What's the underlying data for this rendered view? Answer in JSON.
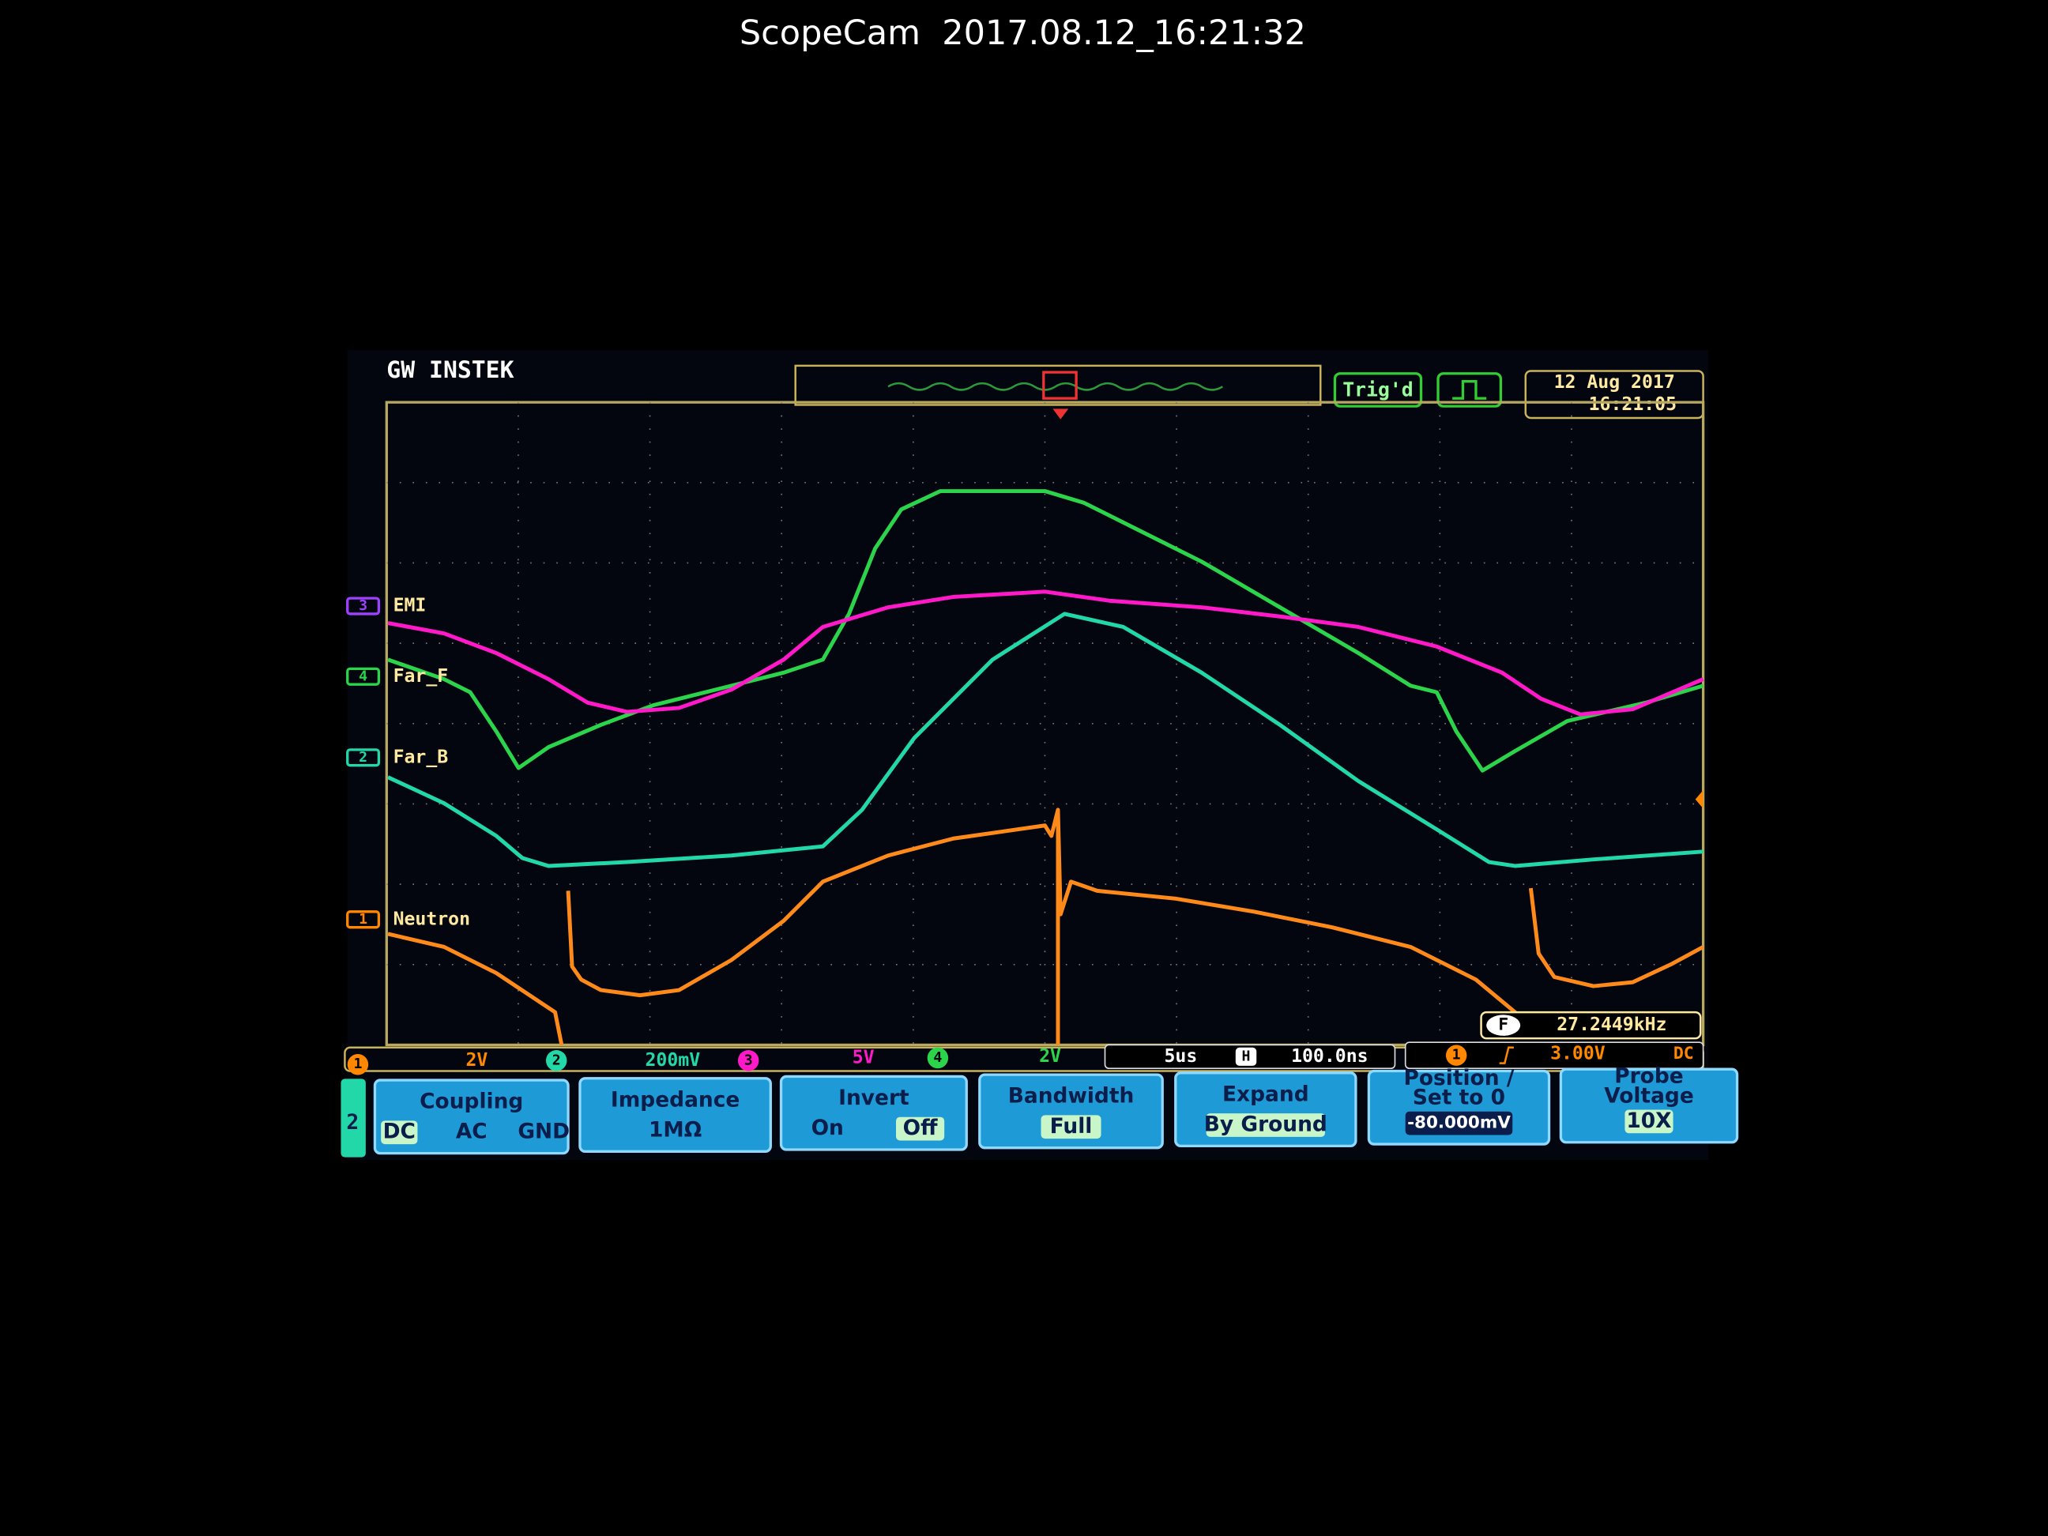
{
  "caption": "ScopeCam  2017.08.12_16:21:32",
  "header": {
    "brand": "GW INSTEK",
    "status": "Trig'd",
    "date": "12 Aug 2017",
    "time": "16:21:05"
  },
  "channels": [
    {
      "number": "3",
      "label": "EMI"
    },
    {
      "number": "4",
      "label": "Far_F"
    },
    {
      "number": "2",
      "label": "Far_B"
    },
    {
      "number": "1",
      "label": "Neutron"
    }
  ],
  "frequency": {
    "marker": "F",
    "value": "27.2449kHz"
  },
  "status_bar": {
    "ch1": "1",
    "ch1_scale": "2V",
    "ch2": "2",
    "ch2_scale": "200mV",
    "ch3": "3",
    "ch3_scale": "5V",
    "ch4": "4",
    "ch4_scale": "2V",
    "timebase": "5us",
    "horizontal_marker": "H",
    "horizontal_position": "100.0ns",
    "trigger_source": "1",
    "trigger_level": "3.00V",
    "trigger_coupling": "DC"
  },
  "menu": {
    "channel": "2",
    "buttons": [
      {
        "title": [
          "Coupling"
        ],
        "options": [
          "DC",
          "AC",
          "GND"
        ]
      },
      {
        "title": [
          "Impedance"
        ],
        "options": [
          "1MΩ"
        ]
      },
      {
        "title": [
          "Invert"
        ],
        "options": [
          "On",
          "Off"
        ]
      },
      {
        "title": [
          "Bandwidth"
        ],
        "options": [
          "Full"
        ]
      },
      {
        "title": [
          "Expand"
        ],
        "options": [
          "By Ground"
        ]
      },
      {
        "title": [
          "Position /",
          "Set to 0"
        ],
        "options": [
          "-80.000mV"
        ]
      },
      {
        "title": [
          "Probe",
          "Voltage"
        ],
        "options": [
          "10X"
        ]
      }
    ]
  }
}
